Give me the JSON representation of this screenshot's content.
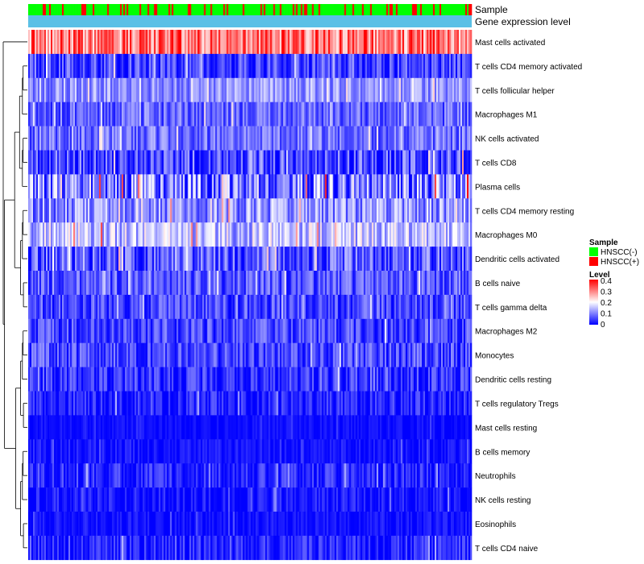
{
  "chart_data": {
    "type": "heatmap",
    "title": "",
    "annotations": {
      "sample_label": "Sample",
      "gene_label": "Gene expression level"
    },
    "rows": [
      {
        "name": "Mast cells activated",
        "base": 0.3,
        "spread": 0.1
      },
      {
        "name": "T cells CD4 memory activated",
        "base": 0.04,
        "spread": 0.07
      },
      {
        "name": "T cells follicular helper",
        "base": 0.11,
        "spread": 0.06
      },
      {
        "name": "Macrophages M1",
        "base": 0.07,
        "spread": 0.06
      },
      {
        "name": "NK cells activated",
        "base": 0.08,
        "spread": 0.06
      },
      {
        "name": "T cells CD8",
        "base": 0.05,
        "spread": 0.09
      },
      {
        "name": "Plasma cells",
        "base": 0.08,
        "spread": 0.12
      },
      {
        "name": "T cells CD4 memory resting",
        "base": 0.1,
        "spread": 0.08
      },
      {
        "name": "Macrophages M0",
        "base": 0.14,
        "spread": 0.08
      },
      {
        "name": "Dendritic cells activated",
        "base": 0.06,
        "spread": 0.08
      },
      {
        "name": "B cells naive",
        "base": 0.06,
        "spread": 0.06
      },
      {
        "name": "T cells gamma delta",
        "base": 0.05,
        "spread": 0.06
      },
      {
        "name": "Macrophages M2",
        "base": 0.05,
        "spread": 0.06
      },
      {
        "name": "Monocytes",
        "base": 0.05,
        "spread": 0.06
      },
      {
        "name": "Dendritic cells resting",
        "base": 0.03,
        "spread": 0.06
      },
      {
        "name": "T cells regulatory  Tregs",
        "base": 0.02,
        "spread": 0.05
      },
      {
        "name": "Mast cells resting",
        "base": 0.005,
        "spread": 0.02
      },
      {
        "name": "B cells memory",
        "base": 0.01,
        "spread": 0.03
      },
      {
        "name": "Neutrophils",
        "base": 0.02,
        "spread": 0.05
      },
      {
        "name": "NK cells resting",
        "base": 0.01,
        "spread": 0.04
      },
      {
        "name": "Eosinophils",
        "base": 0.005,
        "spread": 0.03
      },
      {
        "name": "T cells CD4 naive",
        "base": 0.02,
        "spread": 0.05
      }
    ],
    "n_samples": 275,
    "legend_sample": {
      "title": "Sample",
      "entries": [
        {
          "label": "HNSCC(-)",
          "color": "#00ff00"
        },
        {
          "label": "HNSCC(+)",
          "color": "#ff0000"
        }
      ]
    },
    "legend_level": {
      "title": "Level",
      "ticks": [
        "0.4",
        "0.3",
        "0.2",
        "0.1",
        "0"
      ],
      "tick_values": [
        0.4,
        0.3,
        0.2,
        0.1,
        0
      ],
      "range": [
        0,
        0.4
      ]
    },
    "colors": {
      "low": "#0000ff",
      "mid": "#ffffff",
      "high": "#ff0000",
      "gene_bar": "#5bc0e6",
      "negative": "#00ff00",
      "positive": "#ff0000"
    }
  }
}
